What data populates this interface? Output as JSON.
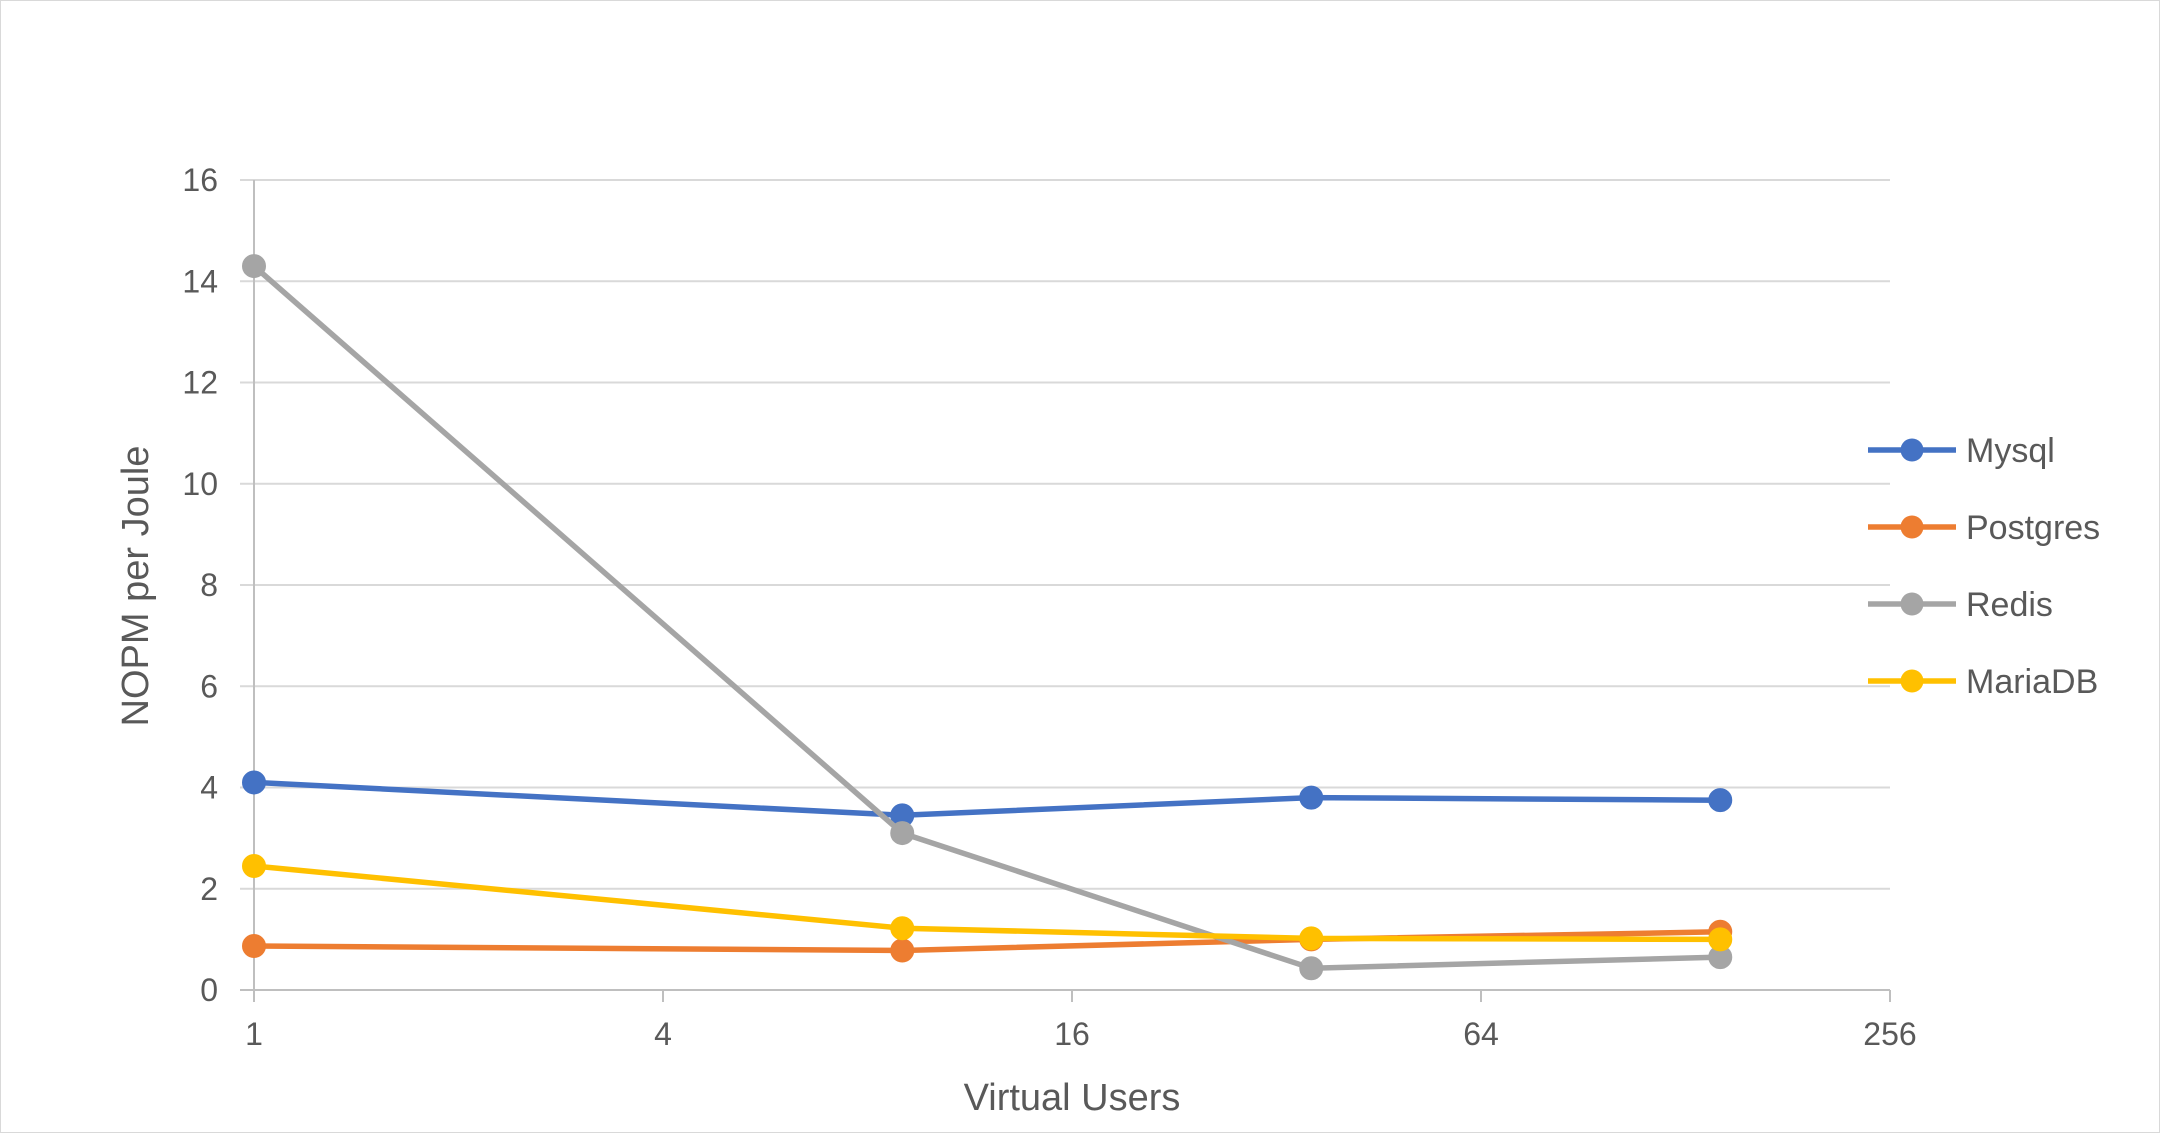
{
  "chart_data": {
    "type": "line",
    "xlabel": "Virtual Users",
    "ylabel": "NOPM per Joule",
    "x_scale": "log2",
    "xlim": [
      1,
      256
    ],
    "ylim": [
      0,
      16
    ],
    "x_ticks": [
      1,
      4,
      16,
      64,
      256
    ],
    "x_tick_labels": [
      "1",
      "4",
      "16",
      "64",
      "256"
    ],
    "y_ticks": [
      0,
      2,
      4,
      6,
      8,
      10,
      12,
      14,
      16
    ],
    "y_tick_labels": [
      "0",
      "2",
      "4",
      "6",
      "8",
      "10",
      "12",
      "14",
      "16"
    ],
    "grid": "horizontal",
    "legend_position": "right",
    "x": [
      1,
      9,
      36,
      144
    ],
    "series": [
      {
        "name": "Mysql",
        "color": "#4472C4",
        "values": [
          4.1,
          3.45,
          3.8,
          3.75
        ]
      },
      {
        "name": "Postgres",
        "color": "#ED7D31",
        "values": [
          0.87,
          0.78,
          1.0,
          1.15
        ]
      },
      {
        "name": "Redis",
        "color": "#A5A5A5",
        "values": [
          14.3,
          3.1,
          0.43,
          0.65
        ]
      },
      {
        "name": "MariaDB",
        "color": "#FFC000",
        "values": [
          2.45,
          1.22,
          1.02,
          1.0
        ]
      }
    ]
  }
}
